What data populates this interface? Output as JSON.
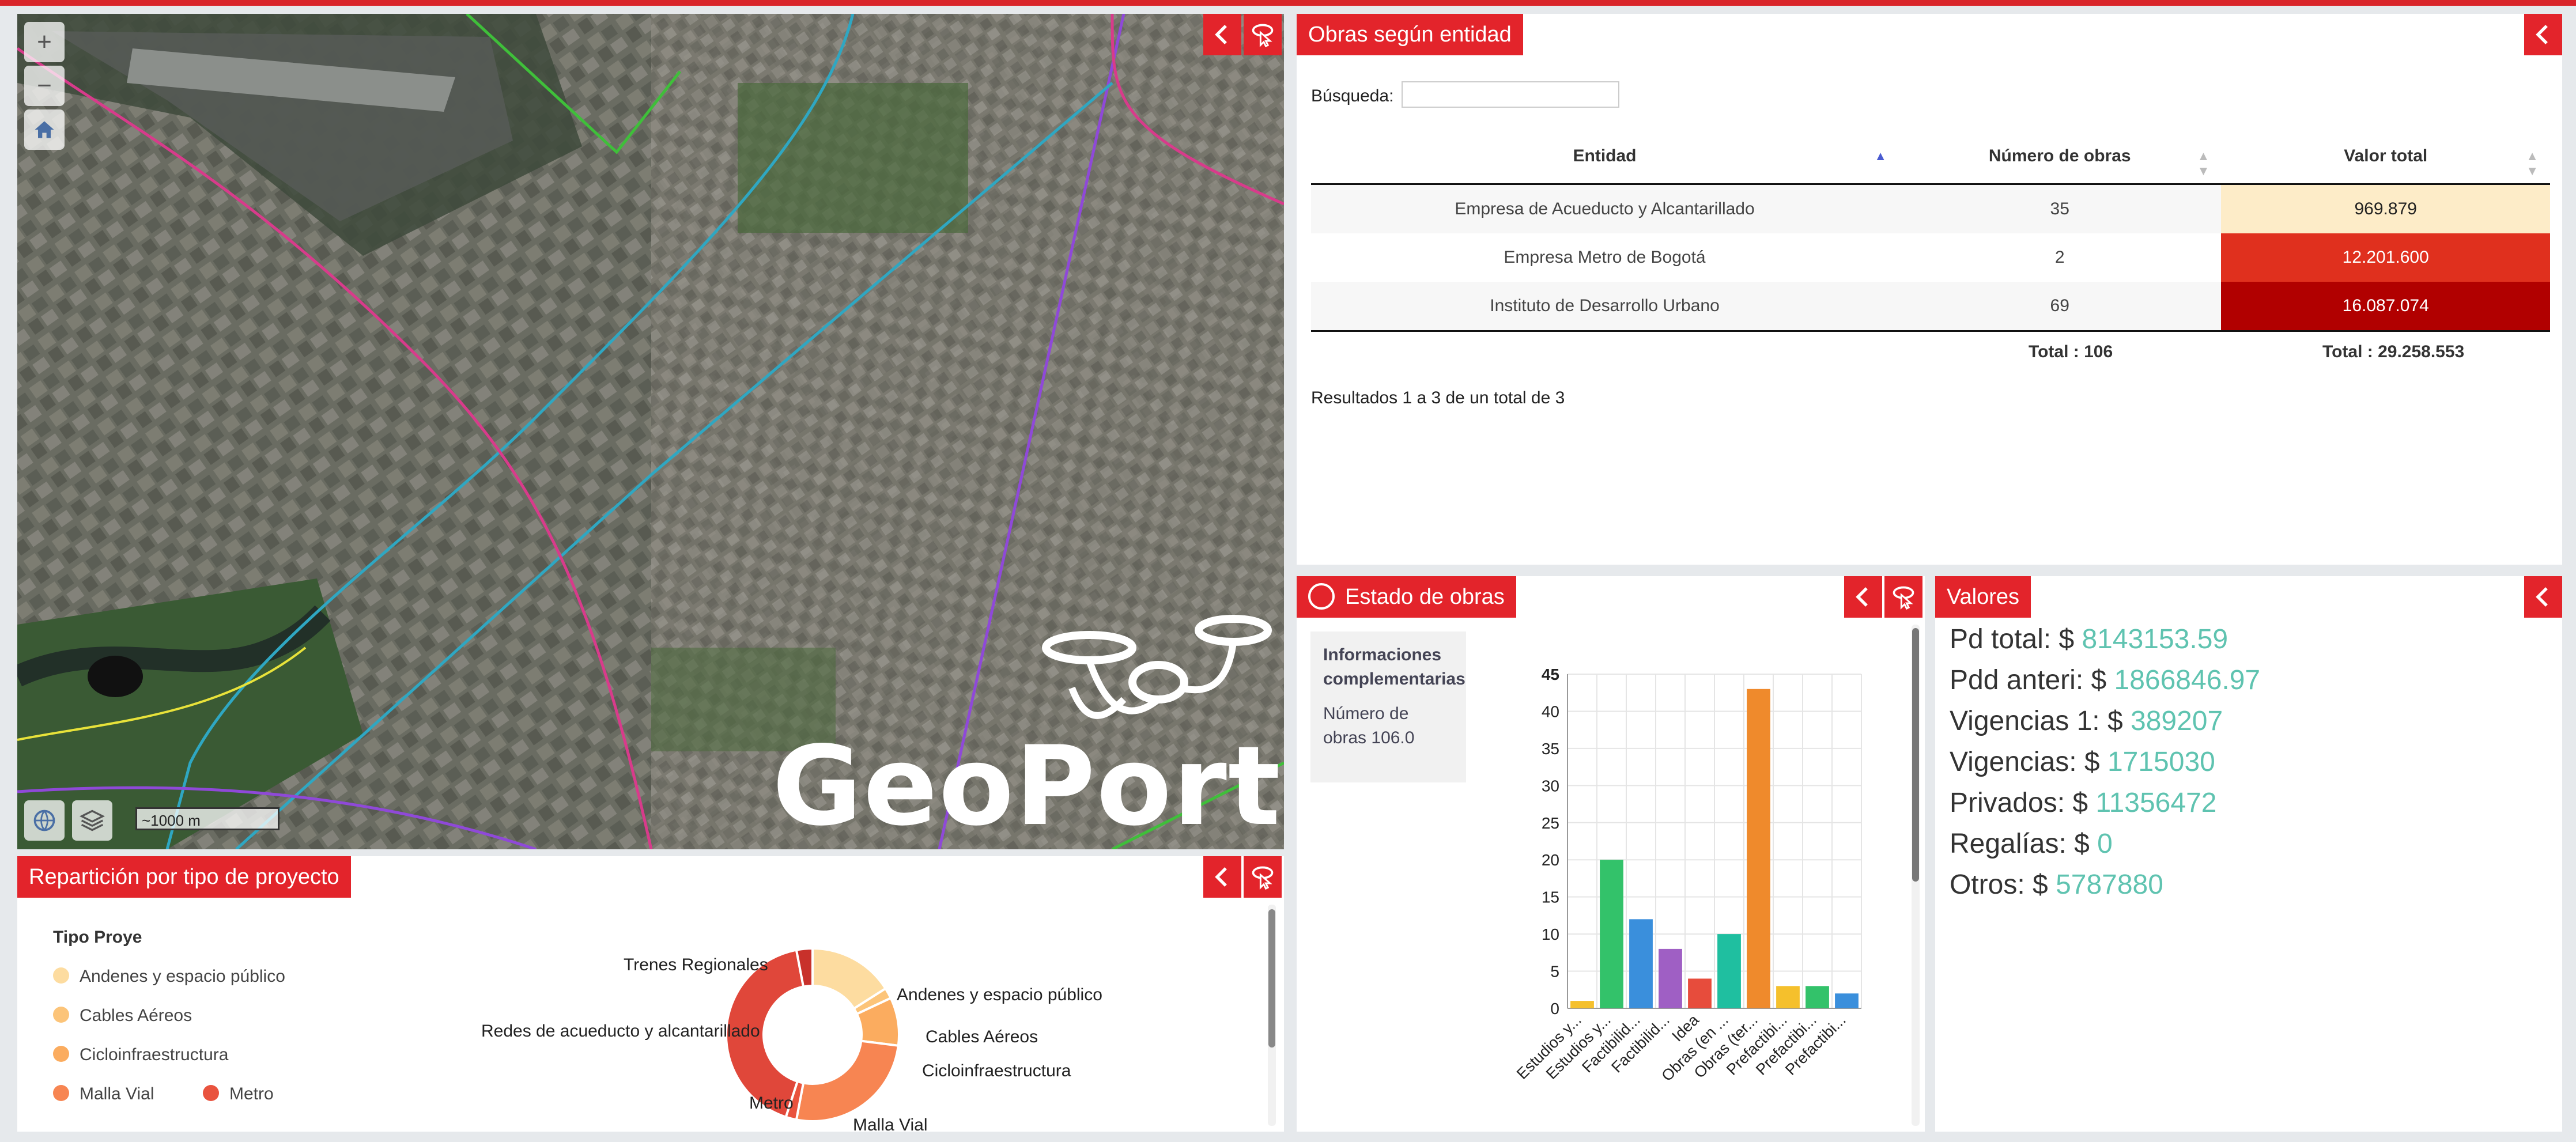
{
  "map": {
    "zoom_in": "+",
    "zoom_out": "−",
    "scale_label": "~1000 m",
    "logo": "GeoPortal",
    "colors": {
      "water": "#2a3d33",
      "route_purple": "#8f49d8",
      "route_cyan": "#2fa7c2",
      "route_pink": "#d83b8b",
      "route_green": "#3fbf3a",
      "route_yellow": "#e8e23a"
    }
  },
  "obras_entidad": {
    "title": "Obras según entidad",
    "search_label": "Búsqueda:",
    "search_value": "",
    "columns": [
      "Entidad",
      "Número de obras",
      "Valor total"
    ],
    "rows": [
      {
        "entidad": "Empresa de Acueducto y Alcantarillado",
        "numero": "35",
        "valor": "969.879",
        "color": "#fdecc8"
      },
      {
        "entidad": "Empresa Metro de Bogotá",
        "numero": "2",
        "valor": "12.201.600",
        "color": "#e0301e"
      },
      {
        "entidad": "Instituto de Desarrollo Urbano",
        "numero": "69",
        "valor": "16.087.074",
        "color": "#b10000"
      }
    ],
    "total_obras": "Total : 106",
    "total_valor": "Total : 29.258.553",
    "results": "Resultados 1 a 3 de un total de 3"
  },
  "reparticion": {
    "title": "Repartición por tipo de proyecto",
    "legend_title": "Tipo Proye",
    "legend": [
      {
        "label": "Andenes y espacio público",
        "color": "#fddca0"
      },
      {
        "label": "Cables Aéreos",
        "color": "#fcc479"
      },
      {
        "label": "Cicloinfraestructura",
        "color": "#fbac5f"
      },
      {
        "label": "Malla Vial",
        "color": "#f78552"
      },
      {
        "label": "Metro",
        "color": "#e9533e"
      }
    ],
    "pie_labels": {
      "trenes": "Trenes Regionales",
      "andenes": "Andenes y espacio público",
      "cables": "Cables Aéreos",
      "ciclo": "Cicloinfraestructura",
      "malla": "Malla Vial",
      "metro": "Metro",
      "redes": "Redes de acueducto y alcantarillado"
    }
  },
  "estado": {
    "title": "Estado de obras",
    "info_heading": "Informaciones complementarias",
    "info_count": "Número de obras 106.0"
  },
  "valores": {
    "title": "Valores",
    "items": [
      {
        "label": "Pd total: $ ",
        "value": "8143153.59"
      },
      {
        "label": "Pdd anteri: $ ",
        "value": "1866846.97"
      },
      {
        "label": "Vigencias 1: $ ",
        "value": "389207"
      },
      {
        "label": "Vigencias: $ ",
        "value": "1715030"
      },
      {
        "label": "Privados: $ ",
        "value": "11356472"
      },
      {
        "label": "Regalías: $ ",
        "value": "0"
      },
      {
        "label": "Otros: $ ",
        "value": "5787880"
      }
    ]
  },
  "chart_data": [
    {
      "type": "bar",
      "categories": [
        "Estudios y...",
        "Estudios y...",
        "Factibilid...",
        "Factibilid...",
        "Idea",
        "Obras (en ...",
        "Obras (ter...",
        "Prefactibi...",
        "Prefactibi...",
        "Prefactibi..."
      ],
      "values": [
        1,
        20,
        12,
        8,
        4,
        10,
        43,
        3,
        3,
        2
      ],
      "colors": [
        "#f5c02c",
        "#33c26a",
        "#3a8fdc",
        "#9f5fc4",
        "#e74c3c",
        "#1fbfa0",
        "#ef8a2c",
        "#f5c02c",
        "#33c26a",
        "#3a8fdc"
      ],
      "ylim": [
        0,
        45
      ],
      "yticks": [
        0,
        5,
        10,
        15,
        20,
        25,
        30,
        35,
        40,
        45
      ],
      "grid": true
    },
    {
      "type": "pie",
      "categories": [
        "Andenes y espacio público",
        "Cables Aéreos",
        "Cicloinfraestructura",
        "Malla Vial",
        "Metro",
        "Redes de acueducto y alcantarillado",
        "Trenes Regionales"
      ],
      "values": [
        16,
        2,
        9,
        26,
        2,
        42,
        3
      ],
      "colors": [
        "#fddca0",
        "#fcc479",
        "#fbac5f",
        "#f78552",
        "#e9533e",
        "#e0473a",
        "#c8312b"
      ],
      "donut": true
    }
  ]
}
